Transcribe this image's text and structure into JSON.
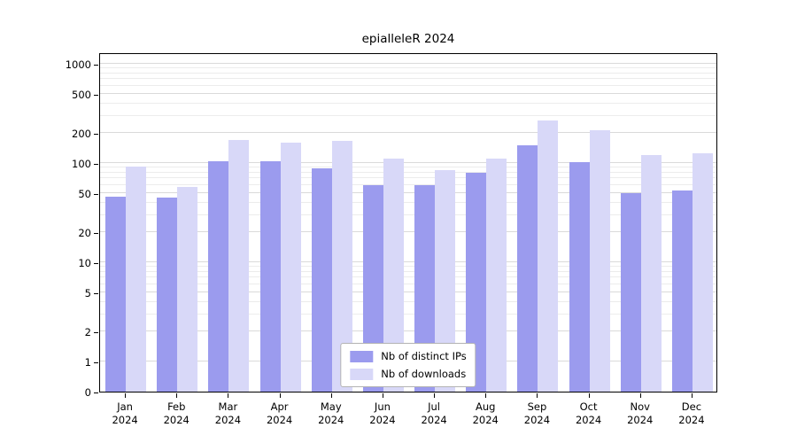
{
  "chart_data": {
    "type": "bar",
    "title": "epialleleR 2024",
    "categories": [
      "Jan",
      "Feb",
      "Mar",
      "Apr",
      "May",
      "Jun",
      "Jul",
      "Aug",
      "Sep",
      "Oct",
      "Nov",
      "Dec"
    ],
    "category_sublabel": "2024",
    "series": [
      {
        "name": "Nb of distinct IPs",
        "color": "#9b9bee",
        "values": [
          46,
          45,
          105,
          105,
          88,
          60,
          60,
          80,
          150,
          102,
          50,
          53
        ]
      },
      {
        "name": "Nb of downloads",
        "color": "#d8d8f8",
        "values": [
          92,
          58,
          170,
          160,
          168,
          110,
          85,
          112,
          270,
          215,
          120,
          125
        ]
      }
    ],
    "yticks": [
      0,
      1,
      2,
      5,
      10,
      20,
      50,
      100,
      200,
      500,
      1000
    ],
    "ylim": [
      0,
      1300
    ],
    "yscale": "pseudo-log with zero baseline",
    "xlabel": "",
    "ylabel": "",
    "grid": true,
    "legend_position": "lower center"
  }
}
